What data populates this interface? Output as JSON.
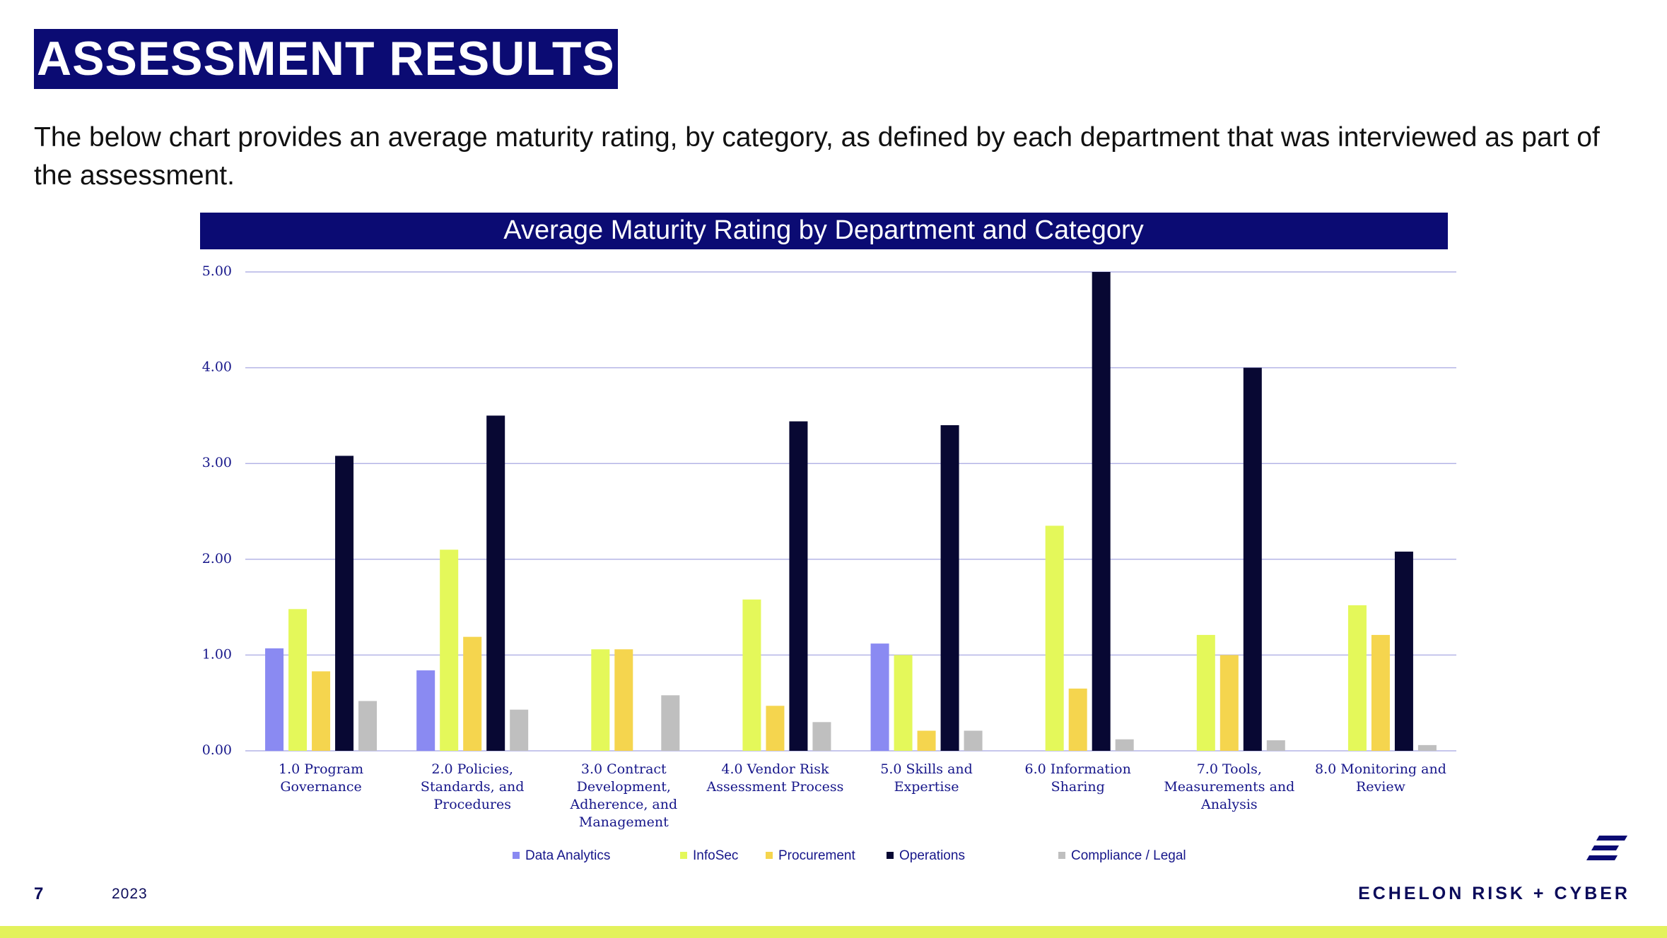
{
  "header": {
    "title": "ASSESSMENT RESULTS",
    "intro": "The below chart provides an average maturity rating, by category, as defined by each department that was interviewed as part of the assessment."
  },
  "chart_data": {
    "type": "bar",
    "title": "Average Maturity Rating by Department and Category",
    "categories": [
      "1.0 Program Governance",
      "2.0 Policies, Standards, and Procedures",
      "3.0 Contract Development, Adherence, and Management",
      "4.0 Vendor Risk Assessment Process",
      "5.0 Skills and Expertise",
      "6.0 Information Sharing",
      "7.0 Tools, Measurements and Analysis",
      "8.0 Monitoring and Review"
    ],
    "series": [
      {
        "name": "Data Analytics",
        "color": "#8a8af2",
        "values": [
          1.07,
          0.84,
          null,
          null,
          1.12,
          null,
          null,
          null
        ]
      },
      {
        "name": "InfoSec",
        "color": "#e4f85a",
        "values": [
          1.48,
          2.1,
          1.06,
          1.58,
          1.0,
          2.35,
          1.21,
          1.52
        ]
      },
      {
        "name": "Procurement",
        "color": "#f5d54e",
        "values": [
          0.83,
          1.19,
          1.06,
          0.47,
          0.21,
          0.65,
          1.0,
          1.21
        ]
      },
      {
        "name": "Operations",
        "color": "#080833",
        "values": [
          3.08,
          3.5,
          null,
          3.44,
          3.4,
          5.0,
          4.0,
          2.08
        ]
      },
      {
        "name": "Compliance / Legal",
        "color": "#bfbfbf",
        "values": [
          0.52,
          0.43,
          0.58,
          0.3,
          0.21,
          0.12,
          0.11,
          0.06
        ]
      }
    ],
    "ylim": [
      0,
      5
    ],
    "yticks": [
      {
        "value": 0,
        "label": "0.00"
      },
      {
        "value": 1,
        "label": "1.00"
      },
      {
        "value": 2,
        "label": "2.00"
      },
      {
        "value": 3,
        "label": "3.00"
      },
      {
        "value": 4,
        "label": "4.00"
      },
      {
        "value": 5,
        "label": "5.00"
      }
    ],
    "grid": true,
    "legend": "bottom"
  },
  "footer": {
    "page": "7",
    "year": "2023",
    "brand": "ECHELON RISK + CYBER"
  }
}
